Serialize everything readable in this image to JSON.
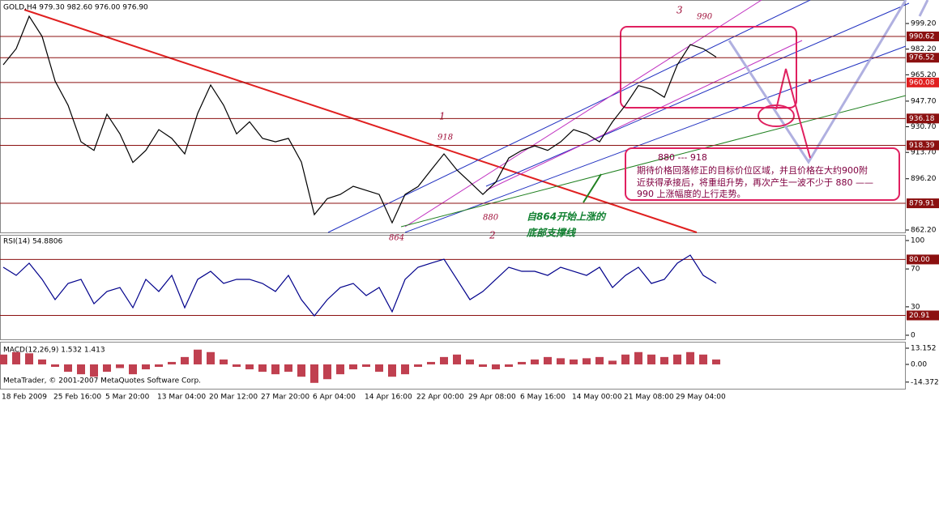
{
  "chart_data": [
    {
      "type": "line",
      "title": "GOLD,H4 979.30 982.60 976.00 976.90",
      "color": "#000000",
      "categories": [
        "18 Feb 2009",
        null,
        null,
        null,
        "25 Feb 16:00",
        null,
        null,
        null,
        "5 Mar 20:00",
        null,
        null,
        null,
        "13 Mar 04:00",
        null,
        null,
        null,
        "20 Mar 12:00",
        null,
        null,
        null,
        "27 Mar 20:00",
        null,
        null,
        null,
        "6 Apr 04:00",
        null,
        null,
        null,
        "14 Apr 16:00",
        null,
        null,
        null,
        "22 Apr 00:00",
        null,
        null,
        null,
        "29 Apr 08:00",
        null,
        null,
        null,
        "6 May 16:00",
        null,
        null,
        null,
        "14 May 00:00",
        null,
        null,
        null,
        "21 May 08:00",
        null,
        null,
        null,
        "29 May 04:00",
        null,
        null,
        null
      ],
      "values": [
        971.8,
        982.5,
        1004,
        990.6,
        961,
        945,
        920.7,
        915,
        939,
        926,
        907,
        915,
        928.8,
        923,
        912.7,
        939.6,
        958.4,
        945,
        926,
        934,
        923,
        920.7,
        923,
        907.3,
        872.4,
        883,
        885.8,
        891.2,
        888.5,
        885.8,
        867,
        885.8,
        891,
        902,
        912.7,
        902,
        894,
        885.8,
        894,
        910,
        915,
        918,
        915,
        920.7,
        928.8,
        926,
        920.7,
        934,
        945,
        958,
        955.7,
        950.3,
        971.8,
        985.2,
        982.5,
        976.9
      ],
      "ylim": [
        860.6,
        1014.8
      ],
      "yticks": [
        {
          "value": 999.2,
          "label": "999.20"
        },
        {
          "value": 982.2,
          "label": "982.20"
        },
        {
          "value": 965.2,
          "label": "965.20"
        },
        {
          "value": 947.7,
          "label": "947.70"
        },
        {
          "value": 930.7,
          "label": "930.70"
        },
        {
          "value": 913.7,
          "label": "913.70"
        },
        {
          "value": 896.2,
          "label": "896.20"
        },
        {
          "value": 862.2,
          "label": "862.20"
        }
      ],
      "levels": [
        990.62,
        976.52,
        960.08,
        936.18,
        918.39,
        879.91
      ],
      "level_color": "#8b1010",
      "annotations": [
        "3",
        "990",
        "1",
        "918",
        "880",
        "864",
        "2",
        "自864开始上涨的",
        "底部支撑线"
      ],
      "note": [
        "880 --- 918",
        "期待价格回落修正的目标价位区域，并且价格在大约900附",
        "近获得承接后，将重组升势，再次产生一波不少于   880 ——",
        "990 上涨幅度的上行走势。"
      ]
    },
    {
      "type": "line",
      "title": "RSI(14) 54.8806",
      "color": "#00008b",
      "values": [
        71.8,
        63.2,
        76.1,
        59,
        37.6,
        54.7,
        59,
        33.3,
        46.2,
        50.4,
        29.1,
        59,
        46.2,
        63.2,
        29.1,
        59,
        67.5,
        54.7,
        59,
        59,
        54.7,
        46.2,
        63.2,
        37.6,
        20.5,
        37.6,
        50.4,
        54.7,
        41.9,
        50.4,
        24.8,
        59,
        71.8,
        76.1,
        80.3,
        59,
        37.6,
        46.2,
        59,
        71.8,
        67.5,
        67.5,
        63.2,
        71.8,
        67.5,
        63.2,
        71.8,
        50.4,
        63.2,
        71.8,
        54.7,
        59,
        76.1,
        84.6,
        63.2,
        54.9
      ],
      "ylim": [
        -4.3,
        106
      ],
      "yticks": [
        100,
        70,
        30,
        0
      ],
      "levels": [
        {
          "value": 80,
          "label": "80.00"
        },
        20.91
      ],
      "level_color": "#8b1010"
    },
    {
      "type": "bar",
      "title": "MACD(12,26,9) 1.532 1.413",
      "color": "#c04050",
      "values": [
        8,
        10,
        9,
        4,
        -2,
        -6,
        -8,
        -10,
        -6,
        -3,
        -8,
        -4,
        -2,
        2,
        6,
        12,
        10,
        4,
        -2,
        -4,
        -6,
        -8,
        -6,
        -10,
        -15,
        -12,
        -8,
        -4,
        -2,
        -6,
        -10,
        -8,
        -2,
        2,
        6,
        8,
        4,
        -2,
        -4,
        -2,
        2,
        4,
        6,
        5,
        4,
        5,
        6,
        3,
        8,
        10,
        8,
        6,
        8,
        10,
        8,
        4
      ],
      "ylim": [
        -20.4,
        18.4
      ],
      "yticks": [
        13.152,
        {
          "value": 0,
          "label": "0.00"
        },
        -14.372
      ],
      "footer": "MetaTrader, © 2001-2007 MetaQuotes Software Corp."
    }
  ]
}
